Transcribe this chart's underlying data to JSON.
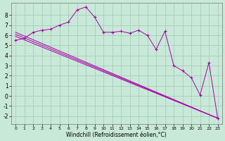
{
  "xlabel": "Windchill (Refroidissement éolien,°C)",
  "bg_color": "#c8e8d8",
  "grid_color": "#a0c8b8",
  "line_color": "#aa00aa",
  "xlim": [
    -0.5,
    23.5
  ],
  "ylim": [
    -2.8,
    9.2
  ],
  "xticks": [
    0,
    1,
    2,
    3,
    4,
    5,
    6,
    7,
    8,
    9,
    10,
    11,
    12,
    13,
    14,
    15,
    16,
    17,
    18,
    19,
    20,
    21,
    22,
    23
  ],
  "yticks": [
    -2,
    -1,
    0,
    1,
    2,
    3,
    4,
    5,
    6,
    7,
    8
  ],
  "line_zigzag": {
    "x": [
      0,
      1,
      2,
      3,
      4,
      5,
      6,
      7,
      8,
      9,
      10,
      11,
      12,
      13,
      14,
      15,
      16,
      17,
      18,
      19,
      20,
      21,
      22,
      23
    ],
    "y": [
      5.5,
      5.7,
      6.3,
      6.5,
      6.6,
      7.0,
      7.3,
      8.5,
      8.8,
      7.8,
      6.3,
      6.3,
      6.4,
      6.2,
      6.5,
      6.0,
      4.6,
      6.4,
      3.0,
      2.5,
      1.8,
      0.1,
      3.3,
      -2.2
    ]
  },
  "line_straight1": {
    "x": [
      0,
      23
    ],
    "y": [
      5.9,
      -2.2
    ]
  },
  "line_straight2": {
    "x": [
      0,
      23
    ],
    "y": [
      6.1,
      -2.2
    ]
  },
  "line_straight3": {
    "x": [
      0,
      23
    ],
    "y": [
      6.3,
      -2.2
    ]
  }
}
